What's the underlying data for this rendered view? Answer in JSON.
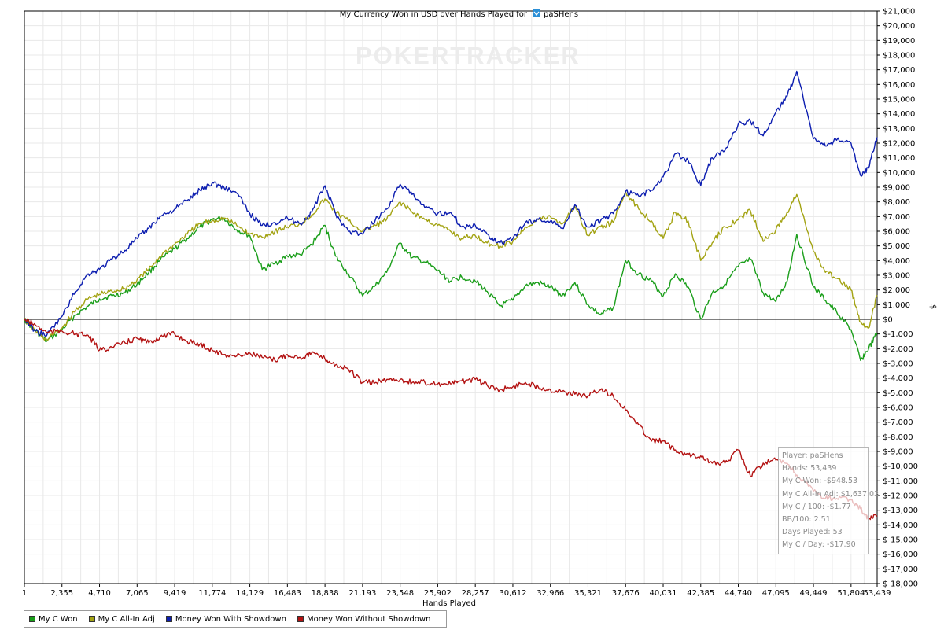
{
  "watermark": "POKERTRACKER",
  "chart_data": {
    "type": "line",
    "title_prefix": "My Currency Won in USD over Hands Played for",
    "player_name": "paSHens",
    "xlabel": "Hands Played",
    "ylabel": "$",
    "xlim": [
      1,
      53439
    ],
    "ylim": [
      -18000,
      21000
    ],
    "grid": true,
    "x_ticks": [
      1,
      2355,
      4710,
      7065,
      9419,
      11774,
      14129,
      16483,
      18838,
      21193,
      23548,
      25902,
      28257,
      30612,
      32966,
      35321,
      37676,
      40031,
      42385,
      44740,
      47095,
      49449,
      51804,
      53439
    ],
    "x_tick_labels": [
      "1",
      "2,355",
      "4,710",
      "7,065",
      "9,419",
      "11,774",
      "14,129",
      "16,483",
      "18,838",
      "21,193",
      "23,548",
      "25,902",
      "28,257",
      "30,612",
      "32,966",
      "35,321",
      "37,676",
      "40,031",
      "42,385",
      "44,740",
      "47,095",
      "49,449",
      "51,804",
      "53,439"
    ],
    "y_ticks": [
      21000,
      20000,
      19000,
      18000,
      17000,
      16000,
      15000,
      14000,
      13000,
      12000,
      11000,
      10000,
      9000,
      8000,
      7000,
      6000,
      5000,
      4000,
      3000,
      2000,
      1000,
      0,
      -1000,
      -2000,
      -3000,
      -4000,
      -5000,
      -6000,
      -7000,
      -8000,
      -9000,
      -10000,
      -11000,
      -12000,
      -13000,
      -14000,
      -15000,
      -16000,
      -17000,
      -18000
    ],
    "y_tick_labels": [
      "$21,000",
      "$20,000",
      "$19,000",
      "$18,000",
      "$17,000",
      "$16,000",
      "$15,000",
      "$14,000",
      "$13,000",
      "$12,000",
      "$11,000",
      "$10,000",
      "$9,000",
      "$8,000",
      "$7,000",
      "$6,000",
      "$5,000",
      "$4,000",
      "$3,000",
      "$2,000",
      "$1,000",
      "$0",
      "$-1,000",
      "$-2,000",
      "$-3,000",
      "$-4,000",
      "$-5,000",
      "$-6,000",
      "$-7,000",
      "$-8,000",
      "$-9,000",
      "$-10,000",
      "$-11,000",
      "$-12,000",
      "$-13,000",
      "$-14,000",
      "$-15,000",
      "$-16,000",
      "$-17,000",
      "$-18,000"
    ],
    "legend_position": "bottom-left",
    "series": [
      {
        "name": "My C Won",
        "color": "#1a9e1a",
        "x": [
          1,
          700,
          1400,
          2355,
          3200,
          4000,
          4710,
          5500,
          6300,
          7065,
          7800,
          8500,
          9419,
          10200,
          11000,
          11774,
          12500,
          13300,
          14129,
          14900,
          15700,
          16483,
          17300,
          18000,
          18838,
          19500,
          20300,
          21193,
          22000,
          22700,
          23548,
          24300,
          25100,
          25902,
          26700,
          27400,
          28257,
          29000,
          29800,
          30612,
          31400,
          32200,
          32966,
          33700,
          34500,
          35321,
          36100,
          36900,
          37676,
          38500,
          39300,
          40031,
          40800,
          41600,
          42385,
          43100,
          43900,
          44740,
          45500,
          46300,
          47095,
          47800,
          48400,
          49449,
          50200,
          50900,
          51804,
          52400,
          52900,
          53439
        ],
        "y": [
          0,
          -800,
          -1500,
          -700,
          300,
          900,
          1400,
          1600,
          1800,
          2400,
          3200,
          4000,
          4800,
          5500,
          6300,
          6800,
          6900,
          6100,
          5700,
          3400,
          3800,
          4300,
          4400,
          5100,
          6400,
          4300,
          3100,
          1600,
          2300,
          3200,
          5200,
          4200,
          3900,
          3300,
          2600,
          2900,
          2600,
          1900,
          900,
          1300,
          2300,
          2500,
          2200,
          1600,
          2500,
          1000,
          300,
          800,
          4000,
          3100,
          2600,
          1600,
          3100,
          2200,
          0,
          1800,
          2400,
          3600,
          4100,
          1800,
          1200,
          2600,
          5800,
          2200,
          1300,
          500,
          -700,
          -2800,
          -2000,
          -948.53
        ]
      },
      {
        "name": "My C All-In Adj",
        "color": "#a3a313",
        "x": [
          1,
          700,
          1400,
          2355,
          3200,
          4000,
          4710,
          5500,
          6300,
          7065,
          7800,
          8500,
          9419,
          10200,
          11000,
          11774,
          12500,
          13300,
          14129,
          14900,
          15700,
          16483,
          17300,
          18000,
          18838,
          19500,
          20300,
          21193,
          22000,
          22700,
          23548,
          24300,
          25100,
          25902,
          26700,
          27400,
          28257,
          29000,
          29800,
          30612,
          31400,
          32200,
          32966,
          33700,
          34500,
          35321,
          36100,
          36900,
          37676,
          38500,
          39300,
          40031,
          40800,
          41600,
          42385,
          43100,
          43900,
          44740,
          45500,
          46300,
          47095,
          47800,
          48400,
          49449,
          50200,
          50900,
          51804,
          52400,
          52900,
          53439
        ],
        "y": [
          0,
          -800,
          -1400,
          -600,
          600,
          1400,
          1700,
          1900,
          2100,
          2700,
          3400,
          4300,
          5100,
          5800,
          6500,
          6700,
          6900,
          6400,
          5800,
          5600,
          6000,
          6300,
          6500,
          7100,
          8200,
          7300,
          6700,
          6000,
          6400,
          6800,
          8000,
          7300,
          6800,
          6400,
          6000,
          5500,
          5700,
          5200,
          5000,
          5300,
          6300,
          6800,
          7000,
          6500,
          7700,
          5700,
          6300,
          6600,
          8700,
          7500,
          6700,
          5500,
          7300,
          6700,
          4000,
          5200,
          6300,
          6800,
          7400,
          5300,
          6100,
          7300,
          8500,
          4600,
          3200,
          2800,
          2000,
          -200,
          -600,
          1637.03
        ]
      },
      {
        "name": "Money Won With Showdown",
        "color": "#0d1eb0",
        "x": [
          1,
          700,
          1400,
          2355,
          3200,
          4000,
          4710,
          5500,
          6300,
          7065,
          7800,
          8500,
          9419,
          10200,
          11000,
          11774,
          12500,
          13300,
          14129,
          14900,
          15700,
          16483,
          17300,
          18000,
          18838,
          19500,
          20300,
          21193,
          22000,
          22700,
          23548,
          24300,
          25100,
          25902,
          26700,
          27400,
          28257,
          29000,
          29800,
          30612,
          31400,
          32200,
          32966,
          33700,
          34500,
          35321,
          36100,
          36900,
          37676,
          38500,
          39300,
          40031,
          40800,
          41600,
          42385,
          43100,
          43900,
          44740,
          45500,
          46300,
          47095,
          47800,
          48400,
          49449,
          50200,
          50900,
          51804,
          52400,
          52900,
          53439
        ],
        "y": [
          0,
          -800,
          -1100,
          200,
          1900,
          3100,
          3400,
          4100,
          4700,
          5500,
          6200,
          7000,
          7500,
          8100,
          8800,
          9300,
          9000,
          8600,
          7200,
          6400,
          6600,
          6900,
          6500,
          7300,
          9100,
          7200,
          6000,
          5800,
          6800,
          7500,
          9200,
          8500,
          7600,
          7200,
          7300,
          6300,
          6400,
          5800,
          5200,
          5500,
          6600,
          6800,
          6700,
          6200,
          7800,
          6300,
          6700,
          7200,
          8700,
          8400,
          8800,
          9700,
          11300,
          10800,
          9100,
          11000,
          11500,
          13300,
          13500,
          12500,
          14100,
          15200,
          16900,
          12300,
          11800,
          12200,
          12000,
          9800,
          10300,
          12400
        ]
      },
      {
        "name": "Money Won Without Showdown",
        "color": "#b31212",
        "x": [
          1,
          700,
          1400,
          2355,
          3200,
          4000,
          4710,
          5500,
          6300,
          7065,
          7800,
          8500,
          9419,
          10200,
          11000,
          11774,
          12500,
          13300,
          14129,
          14900,
          15700,
          16483,
          17300,
          18000,
          18838,
          19500,
          20300,
          21193,
          22000,
          22700,
          23548,
          24300,
          25100,
          25902,
          26700,
          27400,
          28257,
          29000,
          29800,
          30612,
          31400,
          32200,
          32966,
          33700,
          34500,
          35321,
          36100,
          36900,
          37676,
          38500,
          39300,
          40031,
          40800,
          41600,
          42385,
          43100,
          43900,
          44740,
          45500,
          46300,
          47095,
          47800,
          48400,
          49449,
          50200,
          50900,
          51804,
          52400,
          52900,
          53439
        ],
        "y": [
          0,
          -400,
          -900,
          -800,
          -1000,
          -1100,
          -2100,
          -1900,
          -1600,
          -1300,
          -1600,
          -1200,
          -1000,
          -1500,
          -1700,
          -2100,
          -2400,
          -2500,
          -2300,
          -2600,
          -2800,
          -2400,
          -2600,
          -2300,
          -2700,
          -3100,
          -3400,
          -4300,
          -4300,
          -4100,
          -4100,
          -4300,
          -4300,
          -4400,
          -4400,
          -4200,
          -4100,
          -4500,
          -4800,
          -4600,
          -4300,
          -4600,
          -4800,
          -4900,
          -5100,
          -5200,
          -4800,
          -5200,
          -6200,
          -7200,
          -8300,
          -8300,
          -8900,
          -9200,
          -9300,
          -9800,
          -9800,
          -8900,
          -10700,
          -9800,
          -9600,
          -9800,
          -10600,
          -11700,
          -12200,
          -12200,
          -12300,
          -12900,
          -13600,
          -13400
        ]
      }
    ],
    "tooltip": [
      {
        "label": "Player:",
        "value": "paSHens"
      },
      {
        "label": "Hands:",
        "value": "53,439"
      },
      {
        "label": "My C Won:",
        "value": "-$948.53"
      },
      {
        "label": "My C All-In Adj:",
        "value": "$1,637.03"
      },
      {
        "label": "My C / 100:",
        "value": "-$1.77"
      },
      {
        "label": "BB/100:",
        "value": "2.51"
      },
      {
        "label": "Days Played:",
        "value": "53"
      },
      {
        "label": "My C / Day:",
        "value": "-$17.90"
      }
    ]
  }
}
